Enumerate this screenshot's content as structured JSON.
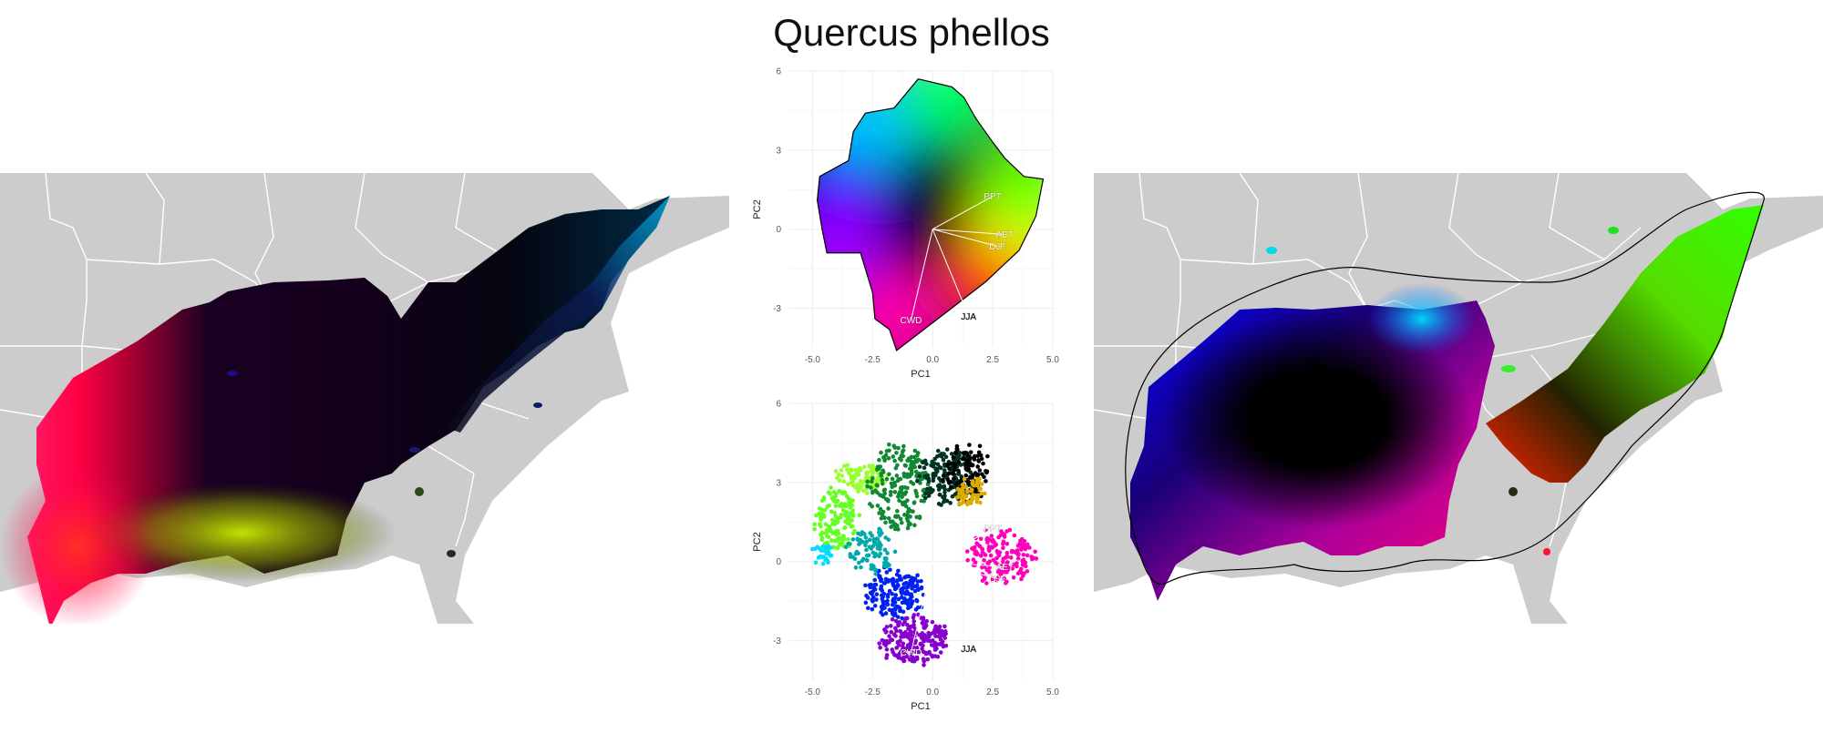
{
  "title": "Quercus phellos",
  "colors": {
    "background": "#ffffff",
    "land": "#cccccc",
    "state_border": "#ffffff",
    "grid": "#ebebeb",
    "hull": "#000000",
    "vector": "#ffffff"
  },
  "chart_data": [
    {
      "type": "scatter",
      "panel": "pca-hull-colormap",
      "xlabel": "PC1",
      "ylabel": "PC2",
      "xlim": [
        -6.0,
        5.0
      ],
      "ylim": [
        -4.5,
        6.0
      ],
      "xticks": [
        -5.0,
        -2.5,
        0.0,
        2.5,
        5.0
      ],
      "xtick_labels": [
        "-5.0",
        "-2.5",
        "0.0",
        "2.5",
        "5.0"
      ],
      "yticks": [
        -3,
        0,
        3,
        6
      ],
      "ytick_labels": [
        "-3",
        "0",
        "3",
        "6"
      ],
      "grid": true,
      "hull": [
        [
          -1.5,
          -4.6
        ],
        [
          0.5,
          -3.2
        ],
        [
          2.2,
          -2.0
        ],
        [
          3.6,
          -0.8
        ],
        [
          4.3,
          0.5
        ],
        [
          4.6,
          1.9
        ],
        [
          3.8,
          2.0
        ],
        [
          3.0,
          2.7
        ],
        [
          2.5,
          3.3
        ],
        [
          1.8,
          4.2
        ],
        [
          1.3,
          5.0
        ],
        [
          0.8,
          5.4
        ],
        [
          -0.6,
          5.7
        ],
        [
          -1.6,
          4.6
        ],
        [
          -2.8,
          4.4
        ],
        [
          -3.3,
          3.7
        ],
        [
          -3.5,
          2.6
        ],
        [
          -4.7,
          2.0
        ],
        [
          -4.8,
          1.1
        ],
        [
          -4.6,
          0.0
        ],
        [
          -4.4,
          -0.9
        ],
        [
          -3.0,
          -0.9
        ],
        [
          -2.5,
          -2.4
        ],
        [
          -2.4,
          -3.4
        ],
        [
          -1.8,
          -3.8
        ]
      ],
      "color_regions": [
        {
          "color": "#000000",
          "x": 0.0,
          "y": 0.5
        },
        {
          "color": "#00c8ff",
          "x": -2.8,
          "y": 4.0
        },
        {
          "color": "#0000ff",
          "x": -4.0,
          "y": 1.0
        },
        {
          "color": "#9900ff",
          "x": -4.0,
          "y": -0.8
        },
        {
          "color": "#ff00aa",
          "x": -1.6,
          "y": -3.5
        },
        {
          "color": "#ff2200",
          "x": 2.4,
          "y": -1.8
        },
        {
          "color": "#ffff00",
          "x": 3.6,
          "y": 0.6
        },
        {
          "color": "#66ff00",
          "x": 4.0,
          "y": 1.8
        },
        {
          "color": "#00ff66",
          "x": 0.8,
          "y": 5.2
        }
      ],
      "vectors": [
        {
          "label": "PPT",
          "x": 2.5,
          "y": 1.25
        },
        {
          "label": "AET",
          "x": 3.0,
          "y": -0.2
        },
        {
          "label": "DJF",
          "x": 2.7,
          "y": -0.65
        },
        {
          "label": "JJA",
          "x": 1.5,
          "y": -3.3
        },
        {
          "label": "CWD",
          "x": -0.9,
          "y": -3.45
        }
      ]
    },
    {
      "type": "scatter",
      "panel": "pca-occurrences",
      "xlabel": "PC1",
      "ylabel": "PC2",
      "xlim": [
        -6.0,
        5.0
      ],
      "ylim": [
        -4.5,
        6.0
      ],
      "xticks": [
        -5.0,
        -2.5,
        0.0,
        2.5,
        5.0
      ],
      "xtick_labels": [
        "-5.0",
        "-2.5",
        "0.0",
        "2.5",
        "5.0"
      ],
      "yticks": [
        -3,
        0,
        3,
        6
      ],
      "ytick_labels": [
        "-3",
        "0",
        "3",
        "6"
      ],
      "grid": true,
      "clusters": [
        {
          "color": "#8800cc",
          "cx": -0.8,
          "cy": -3.0,
          "rx": 1.4,
          "ry": 0.9,
          "n": 220
        },
        {
          "color": "#ff00bb",
          "cx": 2.8,
          "cy": 0.2,
          "rx": 1.4,
          "ry": 1.0,
          "n": 160
        },
        {
          "color": "#0022ee",
          "cx": -1.6,
          "cy": -1.2,
          "rx": 1.2,
          "ry": 0.9,
          "n": 180
        },
        {
          "color": "#66ff22",
          "cx": -4.0,
          "cy": 1.6,
          "rx": 0.9,
          "ry": 1.2,
          "n": 140
        },
        {
          "color": "#99ff33",
          "cx": -3.0,
          "cy": 3.2,
          "rx": 1.0,
          "ry": 0.5,
          "n": 90
        },
        {
          "color": "#118833",
          "cx": -1.4,
          "cy": 2.8,
          "rx": 1.2,
          "ry": 1.6,
          "n": 200
        },
        {
          "color": "#003322",
          "cx": 0.6,
          "cy": 3.2,
          "rx": 1.2,
          "ry": 1.0,
          "n": 170
        },
        {
          "color": "#000000",
          "cx": 1.4,
          "cy": 3.4,
          "rx": 0.9,
          "ry": 1.0,
          "n": 110
        },
        {
          "color": "#ddaa00",
          "cx": 1.6,
          "cy": 2.6,
          "rx": 0.6,
          "ry": 0.5,
          "n": 60
        },
        {
          "color": "#00aaaa",
          "cx": -2.6,
          "cy": 0.4,
          "rx": 1.0,
          "ry": 0.8,
          "n": 90
        },
        {
          "color": "#00ddff",
          "cx": -4.6,
          "cy": 0.3,
          "rx": 0.4,
          "ry": 0.4,
          "n": 30
        }
      ],
      "vectors": [
        {
          "label": "PPT",
          "x": 2.5,
          "y": 1.25
        },
        {
          "label": "AET",
          "x": 3.0,
          "y": -0.2
        },
        {
          "label": "DJF",
          "x": 2.7,
          "y": -0.65
        },
        {
          "label": "JJA",
          "x": 1.5,
          "y": -3.3
        },
        {
          "label": "CWD",
          "x": -0.9,
          "y": -3.45
        }
      ]
    }
  ]
}
